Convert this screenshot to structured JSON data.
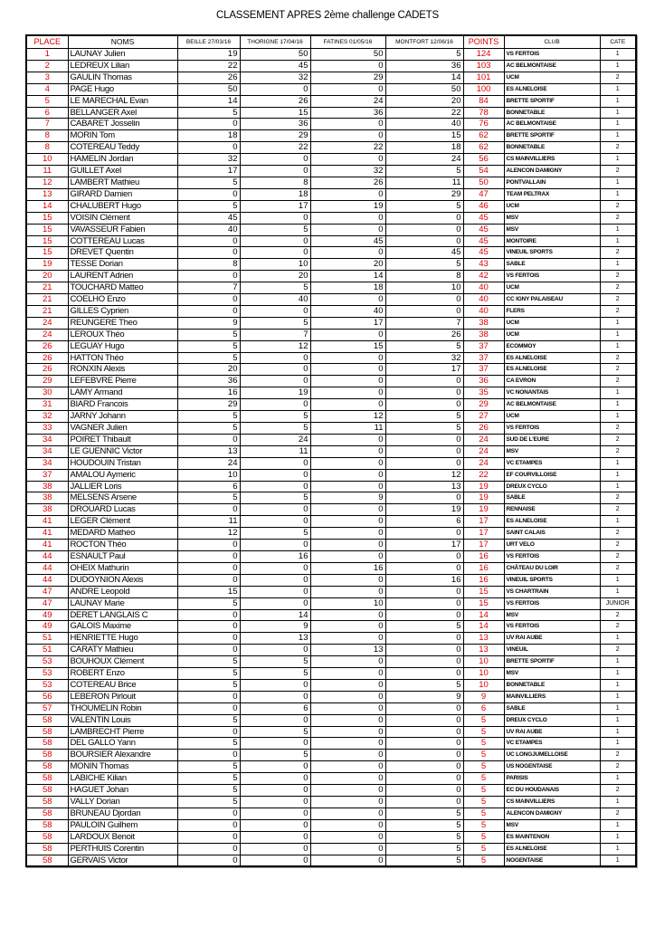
{
  "title": "CLASSEMENT APRES 2ème challenge CADETS",
  "columns": [
    "PLACE",
    "NOMS",
    "BEILLE 27/03/16",
    "THORIGNE 17/04/16",
    "FATINES 01/05/16",
    "MONTFORT 12/06/16",
    "POINTS",
    "CLUB",
    "CATE"
  ],
  "colors": {
    "place_points": "#e00000"
  },
  "rows": [
    [
      "1",
      "LAUNAY Julien",
      "19",
      "50",
      "50",
      "5",
      "124",
      "VS FERTOIS",
      "1"
    ],
    [
      "2",
      "LEDREUX Lilian",
      "22",
      "45",
      "0",
      "36",
      "103",
      "AC BELMONTAISE",
      "1"
    ],
    [
      "3",
      "GAULIN Thomas",
      "26",
      "32",
      "29",
      "14",
      "101",
      "UCM",
      "2"
    ],
    [
      "4",
      "PAGE Hugo",
      "50",
      "0",
      "0",
      "50",
      "100",
      "ES ALNELOISE",
      "1"
    ],
    [
      "5",
      "LE MARECHAL Evan",
      "14",
      "26",
      "24",
      "20",
      "84",
      "BRETTE SPORTIF",
      "1"
    ],
    [
      "6",
      "BELLANGER Axel",
      "5",
      "15",
      "36",
      "22",
      "78",
      "BONNETABLE",
      "1"
    ],
    [
      "7",
      "CABARET Josselin",
      "0",
      "36",
      "0",
      "40",
      "76",
      "AC BELMONTAISE",
      "1"
    ],
    [
      "8",
      "MORIN Tom",
      "18",
      "29",
      "0",
      "15",
      "62",
      "BRETTE SPORTIF",
      "1"
    ],
    [
      "8",
      "COTEREAU Teddy",
      "0",
      "22",
      "22",
      "18",
      "62",
      "BONNETABLE",
      "2"
    ],
    [
      "10",
      "HAMELIN Jordan",
      "32",
      "0",
      "0",
      "24",
      "56",
      "CS MAINVILLIERS",
      "1"
    ],
    [
      "11",
      "GUILLET Axel",
      "17",
      "0",
      "32",
      "5",
      "54",
      "ALENCON DAMIGNY",
      "2"
    ],
    [
      "12",
      "LAMBERT Mathieu",
      "5",
      "8",
      "26",
      "11",
      "50",
      "PONTVALLAIN",
      "1"
    ],
    [
      "13",
      "GIRARD Damien",
      "0",
      "18",
      "0",
      "29",
      "47",
      "TEAM PELTRAX",
      "1"
    ],
    [
      "14",
      "CHALUBERT Hugo",
      "5",
      "17",
      "19",
      "5",
      "46",
      "UCM",
      "2"
    ],
    [
      "15",
      "VOISIN Clément",
      "45",
      "0",
      "0",
      "0",
      "45",
      "MSV",
      "2"
    ],
    [
      "15",
      "VAVASSEUR Fabien",
      "40",
      "5",
      "0",
      "0",
      "45",
      "MSV",
      "1"
    ],
    [
      "15",
      "COTTEREAU Lucas",
      "0",
      "0",
      "45",
      "0",
      "45",
      "MONTOIRE",
      "1"
    ],
    [
      "15",
      "DREVET Quentin",
      "0",
      "0",
      "0",
      "45",
      "45",
      "VINEUIL SPORTS",
      "2"
    ],
    [
      "19",
      "TESSE Dorian",
      "8",
      "10",
      "20",
      "5",
      "43",
      "SABLE",
      "1"
    ],
    [
      "20",
      "LAURENT Adrien",
      "0",
      "20",
      "14",
      "8",
      "42",
      "VS FERTOIS",
      "2"
    ],
    [
      "21",
      "TOUCHARD Matteo",
      "7",
      "5",
      "18",
      "10",
      "40",
      "UCM",
      "2"
    ],
    [
      "21",
      "COELHO Enzo",
      "0",
      "40",
      "0",
      "0",
      "40",
      "CC IGNY PALAISEAU",
      "2"
    ],
    [
      "21",
      "GILLES Cyprien",
      "0",
      "0",
      "40",
      "0",
      "40",
      "FLERS",
      "2"
    ],
    [
      "24",
      "REUNGERE Theo",
      "9",
      "5",
      "17",
      "7",
      "38",
      "UCM",
      "1"
    ],
    [
      "24",
      "LEROUX Théo",
      "5",
      "7",
      "0",
      "26",
      "38",
      "UCM",
      "1"
    ],
    [
      "26",
      "LEGUAY Hugo",
      "5",
      "12",
      "15",
      "5",
      "37",
      "ECOMMOY",
      "1"
    ],
    [
      "26",
      "HATTON Théo",
      "5",
      "0",
      "0",
      "32",
      "37",
      "ES ALNELOISE",
      "2"
    ],
    [
      "26",
      "RONXIN Alexis",
      "20",
      "0",
      "0",
      "17",
      "37",
      "ES ALNELOISE",
      "2"
    ],
    [
      "29",
      "LEFEBVRE Pierre",
      "36",
      "0",
      "0",
      "0",
      "36",
      "CA EVRON",
      "2"
    ],
    [
      "30",
      "LAMY Armand",
      "16",
      "19",
      "0",
      "0",
      "35",
      "VC NONANTAIS",
      "1"
    ],
    [
      "31",
      "BIARD Francois",
      "29",
      "0",
      "0",
      "0",
      "29",
      "AC BELMONTAISE",
      "1"
    ],
    [
      "32",
      "JARNY Johann",
      "5",
      "5",
      "12",
      "5",
      "27",
      "UCM",
      "1"
    ],
    [
      "33",
      "VAGNER Julien",
      "5",
      "5",
      "11",
      "5",
      "26",
      "VS FERTOIS",
      "2"
    ],
    [
      "34",
      "POIRET Thibault",
      "0",
      "24",
      "0",
      "0",
      "24",
      "SUD DE L'EURE",
      "2"
    ],
    [
      "34",
      "LE GUENNIC Victor",
      "13",
      "11",
      "0",
      "0",
      "24",
      "MSV",
      "2"
    ],
    [
      "34",
      "HOUDOUIN Tristan",
      "24",
      "0",
      "0",
      "0",
      "24",
      "VC ETAMPES",
      "1"
    ],
    [
      "37",
      "AMALOU Aymeric",
      "10",
      "0",
      "0",
      "12",
      "22",
      "EF COURVILLOISE",
      "1"
    ],
    [
      "38",
      "JALLIER Loris",
      "6",
      "0",
      "0",
      "13",
      "19",
      "DREUX CYCLO",
      "1"
    ],
    [
      "38",
      "MELSENS Arsene",
      "5",
      "5",
      "9",
      "0",
      "19",
      "SABLE",
      "2"
    ],
    [
      "38",
      "DROUARD Lucas",
      "0",
      "0",
      "0",
      "19",
      "19",
      "RENNAISE",
      "2"
    ],
    [
      "41",
      "LEGER Clément",
      "11",
      "0",
      "0",
      "6",
      "17",
      "ES ALNELOISE",
      "1"
    ],
    [
      "41",
      "MEDARD Matheo",
      "12",
      "5",
      "0",
      "0",
      "17",
      "SAINT CALAIS",
      "2"
    ],
    [
      "41",
      "ROCTON Théo",
      "0",
      "0",
      "0",
      "17",
      "17",
      "URT VELO",
      "2"
    ],
    [
      "44",
      "ESNAULT Paul",
      "0",
      "16",
      "0",
      "0",
      "16",
      "VS FERTOIS",
      "2"
    ],
    [
      "44",
      "OHEIX Mathurin",
      "0",
      "0",
      "16",
      "0",
      "16",
      "CHÂTEAU DU LOIR",
      "2"
    ],
    [
      "44",
      "DUDOYNION Alexis",
      "0",
      "0",
      "0",
      "16",
      "16",
      "VINEUIL SPORTS",
      "1"
    ],
    [
      "47",
      "ANDRE Leopold",
      "15",
      "0",
      "0",
      "0",
      "15",
      "VS CHARTRAIN",
      "1"
    ],
    [
      "47",
      "LAUNAY Marie",
      "5",
      "0",
      "10",
      "0",
      "15",
      "VS FERTOIS",
      "JUNIOR"
    ],
    [
      "49",
      "DERET LANGLAIS C",
      "0",
      "14",
      "0",
      "0",
      "14",
      "MSV",
      "2"
    ],
    [
      "49",
      "GALOIS Maxime",
      "0",
      "9",
      "0",
      "5",
      "14",
      "VS FERTOIS",
      "2"
    ],
    [
      "51",
      "HENRIETTE Hugo",
      "0",
      "13",
      "0",
      "0",
      "13",
      "UV RAI AUBE",
      "1"
    ],
    [
      "51",
      "CARATY Mathieu",
      "0",
      "0",
      "13",
      "0",
      "13",
      "VINEUIL",
      "2"
    ],
    [
      "53",
      "BOUHOUX Clément",
      "5",
      "5",
      "0",
      "0",
      "10",
      "BRETTE SPORTIF",
      "1"
    ],
    [
      "53",
      "ROBERT Enzo",
      "5",
      "5",
      "0",
      "0",
      "10",
      "MSV",
      "1"
    ],
    [
      "53",
      "COTEREAU Brice",
      "5",
      "0",
      "0",
      "5",
      "10",
      "BONNETABLE",
      "1"
    ],
    [
      "56",
      "LEBERON Pirlouit",
      "0",
      "0",
      "0",
      "9",
      "9",
      "MAINVILLIERS",
      "1"
    ],
    [
      "57",
      "THOUMELIN Robin",
      "0",
      "6",
      "0",
      "0",
      "6",
      "SABLE",
      "1"
    ],
    [
      "58",
      "VALENTIN Louis",
      "5",
      "0",
      "0",
      "0",
      "5",
      "DREUX CYCLO",
      "1"
    ],
    [
      "58",
      "LAMBRECHT Pierre",
      "0",
      "5",
      "0",
      "0",
      "5",
      "UV RAI AUBE",
      "1"
    ],
    [
      "58",
      "DEL GALLO Yann",
      "5",
      "0",
      "0",
      "0",
      "5",
      "VC ETAMPES",
      "1"
    ],
    [
      "58",
      "BOURSIER Alexandre",
      "0",
      "5",
      "0",
      "0",
      "5",
      "UC LONGJUMELLOISE",
      "2"
    ],
    [
      "58",
      "MONIN Thomas",
      "5",
      "0",
      "0",
      "0",
      "5",
      "US NOGENTAISE",
      "2"
    ],
    [
      "58",
      "LABICHE Kilian",
      "5",
      "0",
      "0",
      "0",
      "5",
      "PARISIS",
      "1"
    ],
    [
      "58",
      "HAGUET Johan",
      "5",
      "0",
      "0",
      "0",
      "5",
      "EC DU HOUDANAIS",
      "2"
    ],
    [
      "58",
      "VALLY Dorian",
      "5",
      "0",
      "0",
      "0",
      "5",
      "CS MAINVILLIERS",
      "1"
    ],
    [
      "58",
      "BRUNEAU Djordan",
      "0",
      "0",
      "0",
      "5",
      "5",
      "ALENCON DAMIGNY",
      "2"
    ],
    [
      "58",
      "PAULOIN Guilhem",
      "0",
      "0",
      "0",
      "5",
      "5",
      "MSV",
      "1"
    ],
    [
      "58",
      "LARDOUX Benoit",
      "0",
      "0",
      "0",
      "5",
      "5",
      "ES MAINTENON",
      "1"
    ],
    [
      "58",
      "PERTHUIS Corentin",
      "0",
      "0",
      "0",
      "5",
      "5",
      "ES ALNELOISE",
      "1"
    ],
    [
      "58",
      "GERVAIS Victor",
      "0",
      "0",
      "0",
      "5",
      "5",
      "NOGENTAISE",
      "1"
    ]
  ]
}
